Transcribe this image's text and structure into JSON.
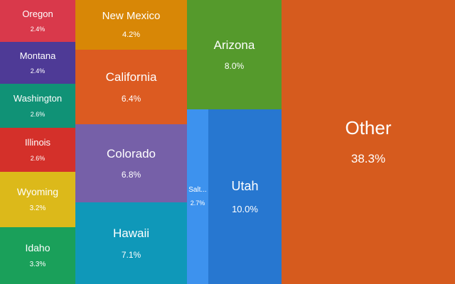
{
  "chart_data": {
    "type": "treemap",
    "items": [
      {
        "name": "Oregon",
        "value": 2.4,
        "label": "2.4%",
        "color": "#d9394b"
      },
      {
        "name": "Montana",
        "value": 2.4,
        "label": "2.4%",
        "color": "#4e3a96"
      },
      {
        "name": "Washington",
        "value": 2.6,
        "label": "2.6%",
        "color": "#109276"
      },
      {
        "name": "Illinois",
        "value": 2.6,
        "label": "2.6%",
        "color": "#d4302a"
      },
      {
        "name": "Wyoming",
        "value": 3.2,
        "label": "3.2%",
        "color": "#dcb91a"
      },
      {
        "name": "Idaho",
        "value": 3.3,
        "label": "3.3%",
        "color": "#1aa05a"
      },
      {
        "name": "New Mexico",
        "value": 4.2,
        "label": "4.2%",
        "color": "#d88706"
      },
      {
        "name": "California",
        "value": 6.4,
        "label": "6.4%",
        "color": "#dc5b21"
      },
      {
        "name": "Colorado",
        "value": 6.8,
        "label": "6.8%",
        "color": "#7660a8"
      },
      {
        "name": "Hawaii",
        "value": 7.1,
        "label": "7.1%",
        "color": "#0f98b9"
      },
      {
        "name": "Arizona",
        "value": 8.0,
        "label": "8.0%",
        "color": "#559a2c"
      },
      {
        "name": "Salt...",
        "value": 2.7,
        "label": "2.7%",
        "color": "#3d92ee"
      },
      {
        "name": "Utah",
        "value": 10.0,
        "label": "10.0%",
        "color": "#2777d0"
      },
      {
        "name": "Other",
        "value": 38.3,
        "label": "38.3%",
        "color": "#d65b1e"
      }
    ]
  }
}
